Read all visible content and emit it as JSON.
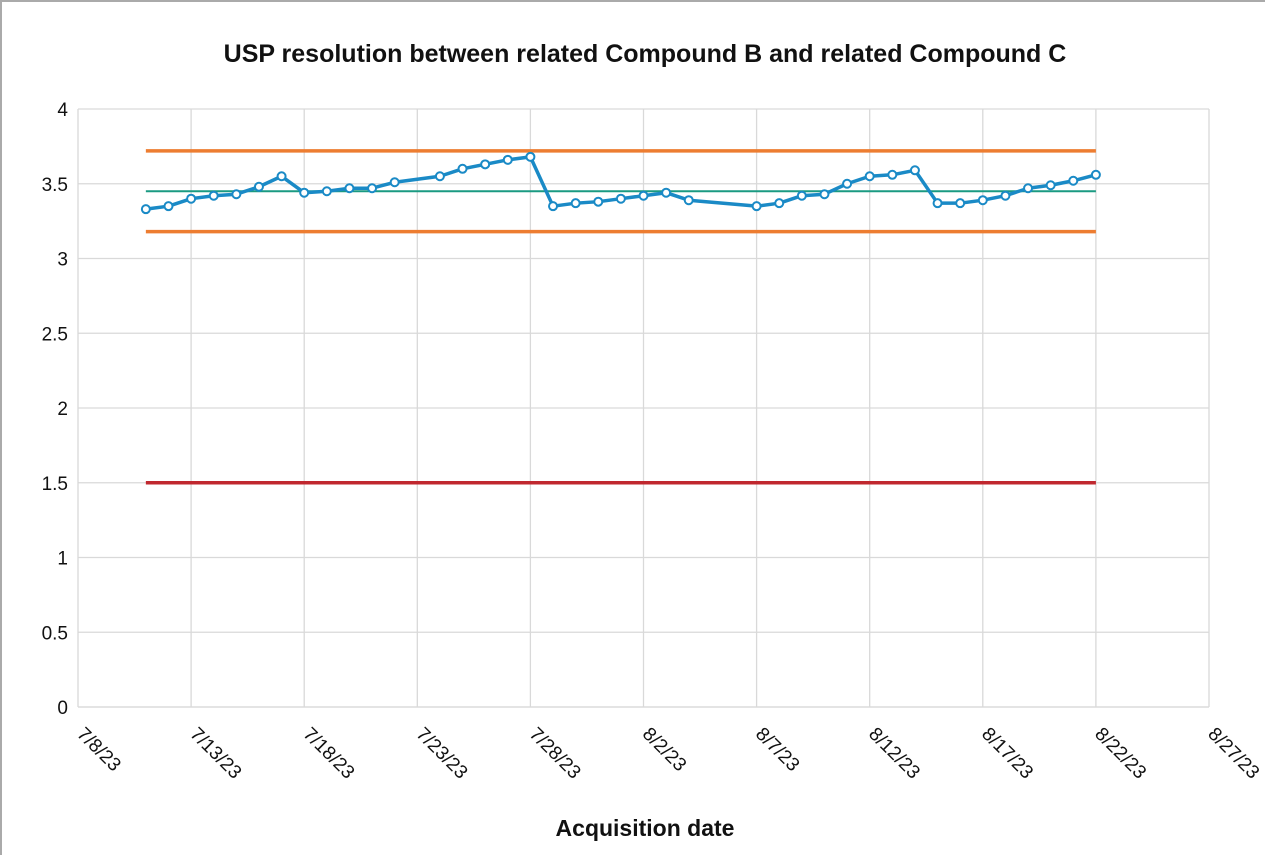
{
  "chart_data": {
    "type": "line",
    "title": "USP resolution between related Compound B and related Compound C",
    "x_label": "Acquisition date",
    "xlim": [
      "7/8/23",
      "8/27/23"
    ],
    "xticks": [
      "7/8/23",
      "7/13/23",
      "7/18/23",
      "7/23/23",
      "7/28/23",
      "8/2/23",
      "8/7/23",
      "8/12/23",
      "8/17/23",
      "8/22/23",
      "8/27/23"
    ],
    "ylim": [
      0,
      4
    ],
    "yticks": [
      0,
      0.5,
      1,
      1.5,
      2,
      2.5,
      3,
      3.5,
      4
    ],
    "grid": true,
    "series": [
      {
        "color": "#1a8ac6",
        "markers": true,
        "x": [
          "7/11/23",
          "7/12/23",
          "7/13/23",
          "7/14/23",
          "7/15/23",
          "7/16/23",
          "7/17/23",
          "7/18/23",
          "7/19/23",
          "7/20/23",
          "7/21/23",
          "7/22/23",
          "7/24/23",
          "7/25/23",
          "7/26/23",
          "7/27/23",
          "7/28/23",
          "7/29/23",
          "7/30/23",
          "7/31/23",
          "8/1/23",
          "8/2/23",
          "8/3/23",
          "8/4/23",
          "8/7/23",
          "8/8/23",
          "8/9/23",
          "8/10/23",
          "8/11/23",
          "8/12/23",
          "8/13/23",
          "8/14/23",
          "8/15/23",
          "8/16/23",
          "8/17/23",
          "8/18/23",
          "8/19/23",
          "8/20/23",
          "8/21/23",
          "8/22/23"
        ],
        "values": [
          3.33,
          3.35,
          3.4,
          3.42,
          3.43,
          3.48,
          3.55,
          3.44,
          3.45,
          3.47,
          3.47,
          3.51,
          3.55,
          3.6,
          3.63,
          3.66,
          3.68,
          3.35,
          3.37,
          3.38,
          3.4,
          3.42,
          3.44,
          3.39,
          3.35,
          3.37,
          3.42,
          3.43,
          3.5,
          3.55,
          3.56,
          3.59,
          3.37,
          3.37,
          3.39,
          3.42,
          3.47,
          3.49,
          3.52,
          3.56
        ]
      },
      {
        "color": "#ed7d31",
        "x": [
          "7/11/23",
          "8/22/23"
        ],
        "values": [
          3.72,
          3.72
        ]
      },
      {
        "color": "#ed7d31",
        "x": [
          "7/11/23",
          "8/22/23"
        ],
        "values": [
          3.18,
          3.18
        ]
      },
      {
        "color": "#1a9a82",
        "thin": true,
        "x": [
          "7/11/23",
          "8/22/23"
        ],
        "values": [
          3.45,
          3.45
        ]
      },
      {
        "color": "#c0282f",
        "x": [
          "7/11/23",
          "8/22/23"
        ],
        "values": [
          1.5,
          1.5
        ]
      }
    ]
  }
}
